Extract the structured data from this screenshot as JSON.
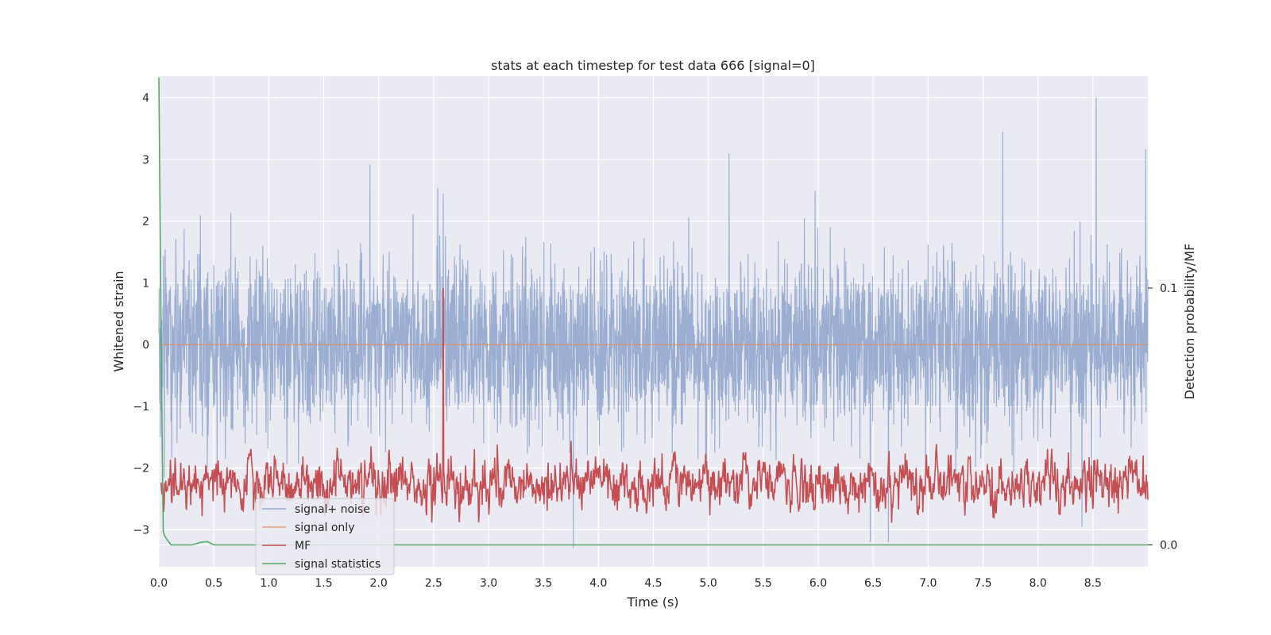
{
  "chart_data": {
    "type": "line",
    "title": "stats at each timestep for test data 666 [signal=0]",
    "xlabel": "Time (s)",
    "ylabel": "Whitened strain",
    "y2label": "Detection probability/MF",
    "xlim": [
      0.0,
      9.0
    ],
    "ylim": [
      -3.6,
      4.35
    ],
    "y2lim": [
      -0.0085,
      0.1825
    ],
    "x_ticks": [
      "0.0",
      "0.5",
      "1.0",
      "1.5",
      "2.0",
      "2.5",
      "3.0",
      "3.5",
      "4.0",
      "4.5",
      "5.0",
      "5.5",
      "6.0",
      "6.5",
      "7.0",
      "7.5",
      "8.0",
      "8.5"
    ],
    "y_ticks": [
      "−3",
      "−2",
      "−1",
      "0",
      "1",
      "2",
      "3",
      "4"
    ],
    "y2_ticks": [
      "0.0",
      "0.1"
    ],
    "grid": true,
    "legend_position": "lower-left",
    "series": [
      {
        "name": "signal+ noise",
        "axis": "left",
        "color": "#4c72b0",
        "description_range": [
          -3.3,
          4.0
        ],
        "peaks": [
          {
            "x": 1.92,
            "y": 2.92
          },
          {
            "x": 5.19,
            "y": 3.1
          },
          {
            "x": 7.68,
            "y": 3.45
          },
          {
            "x": 8.53,
            "y": 4.0
          },
          {
            "x": 8.98,
            "y": 3.17
          },
          {
            "x": 3.77,
            "y": -3.3
          },
          {
            "x": 6.64,
            "y": -3.2
          },
          {
            "x": 8.4,
            "y": -2.95
          },
          {
            "x": 0.05,
            "y": -2.15
          }
        ]
      },
      {
        "name": "signal only",
        "axis": "left",
        "color": "#dd8452",
        "x": [
          0.0,
          9.0
        ],
        "y": [
          0.0,
          0.0
        ]
      },
      {
        "name": "MF",
        "axis": "right",
        "color": "#c44e52",
        "peaks": [
          {
            "x": 2.59,
            "y": 0.1
          }
        ]
      },
      {
        "name": "signal statistics",
        "axis": "right",
        "color": "#55a868",
        "x": [
          0.0,
          0.02,
          0.04,
          0.06,
          0.11,
          0.3,
          0.38,
          0.44,
          0.5,
          9.0
        ],
        "y": [
          0.182,
          0.08,
          0.005,
          0.003,
          0.0,
          0.0,
          0.001,
          0.0013,
          0.0,
          0.0
        ]
      }
    ]
  }
}
